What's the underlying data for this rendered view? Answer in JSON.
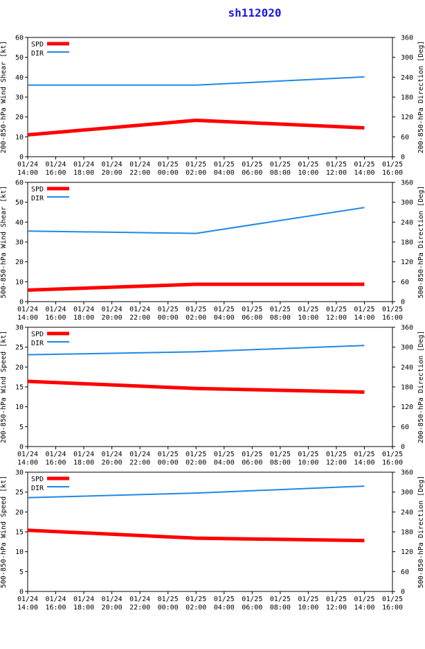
{
  "title": "sh112020",
  "x_ticks": [
    [
      "01/24",
      "14:00"
    ],
    [
      "01/24",
      "16:00"
    ],
    [
      "01/24",
      "18:00"
    ],
    [
      "01/24",
      "20:00"
    ],
    [
      "01/24",
      "22:00"
    ],
    [
      "01/25",
      "00:00"
    ],
    [
      "01/25",
      "02:00"
    ],
    [
      "01/25",
      "04:00"
    ],
    [
      "01/25",
      "06:00"
    ],
    [
      "01/25",
      "08:00"
    ],
    [
      "01/25",
      "10:00"
    ],
    [
      "01/25",
      "12:00"
    ],
    [
      "01/25",
      "14:00"
    ],
    [
      "01/25",
      "16:00"
    ]
  ],
  "legend": {
    "spd": "SPD",
    "dir": "DIR"
  },
  "colors": {
    "spd": "#ff0000",
    "dir": "#1e88e5",
    "title": "#1a1adc"
  },
  "chart_data": [
    {
      "type": "line",
      "ylabel_left": "200-850-hPa Wind Shear [kt]",
      "ylabel_right": "200-850-hPa Direction [Deg]",
      "ylim_left": [
        0,
        60
      ],
      "yticks_left": [
        0,
        10,
        20,
        30,
        40,
        50,
        60
      ],
      "ylim_right": [
        0,
        360
      ],
      "yticks_right": [
        0,
        60,
        120,
        180,
        240,
        300,
        360
      ],
      "x_hours": [
        0,
        12,
        24
      ],
      "series": [
        {
          "name": "SPD",
          "axis": "left",
          "values": [
            11,
            18.3,
            14.5
          ]
        },
        {
          "name": "DIR",
          "axis": "right",
          "values": [
            216,
            216,
            241
          ]
        }
      ]
    },
    {
      "type": "line",
      "ylabel_left": "500-850-hPa Wind Shear [kt]",
      "ylabel_right": "500-850-hPa Direction [Deg]",
      "ylim_left": [
        0,
        60
      ],
      "yticks_left": [
        0,
        10,
        20,
        30,
        40,
        50,
        60
      ],
      "ylim_right": [
        0,
        360
      ],
      "yticks_right": [
        0,
        60,
        120,
        180,
        240,
        300,
        360
      ],
      "x_hours": [
        0,
        12,
        24
      ],
      "series": [
        {
          "name": "SPD",
          "axis": "left",
          "values": [
            5.8,
            8.7,
            8.7
          ]
        },
        {
          "name": "DIR",
          "axis": "right",
          "values": [
            213,
            206,
            284
          ]
        }
      ]
    },
    {
      "type": "line",
      "ylabel_left": "200-850-hPa Wind Speed [kt]",
      "ylabel_right": "200-850-hPa Direction [Deg]",
      "ylim_left": [
        0,
        30
      ],
      "yticks_left": [
        0,
        5,
        10,
        15,
        20,
        25,
        30
      ],
      "ylim_right": [
        0,
        360
      ],
      "yticks_right": [
        0,
        60,
        120,
        180,
        240,
        300,
        360
      ],
      "x_hours": [
        0,
        12,
        24
      ],
      "series": [
        {
          "name": "SPD",
          "axis": "left",
          "values": [
            16.4,
            14.6,
            13.7
          ]
        },
        {
          "name": "DIR",
          "axis": "right",
          "values": [
            277,
            286,
            305
          ]
        }
      ]
    },
    {
      "type": "line",
      "ylabel_left": "500-850-hPa Wind Speed [kt]",
      "ylabel_right": "500-850-hPa Direction [Deg]",
      "ylim_left": [
        0,
        30
      ],
      "yticks_left": [
        0,
        5,
        10,
        15,
        20,
        25,
        30
      ],
      "ylim_right": [
        0,
        360
      ],
      "yticks_right": [
        0,
        60,
        120,
        180,
        240,
        300,
        360
      ],
      "x_hours": [
        0,
        12,
        24
      ],
      "series": [
        {
          "name": "SPD",
          "axis": "left",
          "values": [
            15.4,
            13.4,
            12.8
          ]
        },
        {
          "name": "DIR",
          "axis": "right",
          "values": [
            283,
            297,
            318
          ]
        }
      ]
    }
  ]
}
